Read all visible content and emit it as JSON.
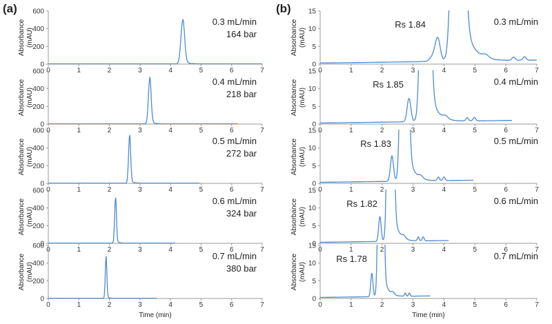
{
  "panel_labels": [
    "(a)",
    "(b)"
  ],
  "chart_data": [
    {
      "panel": "(a)",
      "type": "line",
      "xlabel": "Time (min)",
      "ylabel": "Absorbance (mAU)",
      "xlim": [
        0,
        7
      ],
      "ylim": [
        0,
        600
      ],
      "x_ticks": [
        0,
        1,
        2,
        3,
        4,
        5,
        6,
        7
      ],
      "y_ticks": [
        0,
        200,
        400,
        600
      ],
      "series": [
        {
          "name": "0.3 mL/min",
          "flow": "0.3 mL/min",
          "pressure": "164 bar",
          "peak_time": 4.4,
          "peak_height": 490,
          "peak_width": 0.06,
          "end_time": 7.0
        },
        {
          "name": "0.4 mL/min",
          "flow": "0.4 mL/min",
          "pressure": "218 bar",
          "peak_time": 3.32,
          "peak_height": 505,
          "peak_width": 0.045,
          "end_time": 6.2
        },
        {
          "name": "0.5 mL/min",
          "flow": "0.5 mL/min",
          "pressure": "272 bar",
          "peak_time": 2.66,
          "peak_height": 525,
          "peak_width": 0.035,
          "end_time": 4.95
        },
        {
          "name": "0.6 mL/min",
          "flow": "0.6 mL/min",
          "pressure": "324 bar",
          "peak_time": 2.2,
          "peak_height": 500,
          "peak_width": 0.03,
          "end_time": 4.15
        },
        {
          "name": "0.7 mL/min",
          "flow": "0.7 mL/min",
          "pressure": "380 bar",
          "peak_time": 1.89,
          "peak_height": 455,
          "peak_width": 0.026,
          "end_time": 3.55
        }
      ]
    },
    {
      "panel": "(b)",
      "type": "line",
      "xlabel": "Time (min)",
      "ylabel": "Absorbance (mAU)",
      "xlim": [
        0,
        7
      ],
      "ylim": [
        0,
        15
      ],
      "x_ticks": [
        0,
        1,
        2,
        3,
        4,
        5,
        6,
        7
      ],
      "y_ticks": [
        0,
        5,
        10,
        15
      ],
      "series": [
        {
          "name": "0.3 mL/min",
          "flow": "0.3 mL/min",
          "resolution": "Rs 1.84",
          "end_time": 7.0,
          "peaks": [
            {
              "t": 3.8,
              "h": 6.3,
              "w": 0.08
            },
            {
              "t": 3.65,
              "h": 1.5,
              "w": 0.1
            },
            {
              "t": 4.45,
              "h": 180,
              "w": 0.13
            },
            {
              "t": 5.35,
              "h": 0.9,
              "w": 0.1
            },
            {
              "t": 6.25,
              "h": 0.9,
              "w": 0.05
            },
            {
              "t": 6.6,
              "h": 1.0,
              "w": 0.05
            }
          ],
          "tail": {
            "t0": 4.73,
            "amp": 9,
            "tau": 0.28
          }
        },
        {
          "name": "0.4 mL/min",
          "flow": "0.4 mL/min",
          "resolution": "Rs 1.85",
          "end_time": 6.2,
          "peaks": [
            {
              "t": 2.87,
              "h": 6.6,
              "w": 0.06
            },
            {
              "t": 3.4,
              "h": 180,
              "w": 0.1
            },
            {
              "t": 4.05,
              "h": 0.8,
              "w": 0.08
            },
            {
              "t": 4.75,
              "h": 0.9,
              "w": 0.04
            },
            {
              "t": 4.98,
              "h": 1.0,
              "w": 0.04
            }
          ],
          "tail": {
            "t0": 3.6,
            "amp": 7,
            "tau": 0.22
          }
        },
        {
          "name": "0.5 mL/min",
          "flow": "0.5 mL/min",
          "resolution": "Rs 1.83",
          "end_time": 4.95,
          "peaks": [
            {
              "t": 2.32,
              "h": 7.2,
              "w": 0.05
            },
            {
              "t": 2.72,
              "h": 180,
              "w": 0.08
            },
            {
              "t": 3.25,
              "h": 0.8,
              "w": 0.07
            },
            {
              "t": 3.82,
              "h": 1.0,
              "w": 0.035
            },
            {
              "t": 4.0,
              "h": 1.0,
              "w": 0.035
            }
          ],
          "tail": {
            "t0": 2.88,
            "amp": 7,
            "tau": 0.18
          }
        },
        {
          "name": "0.6 mL/min",
          "flow": "0.6 mL/min",
          "resolution": "Rs 1.82",
          "end_time": 4.15,
          "peaks": [
            {
              "t": 1.93,
              "h": 7.0,
              "w": 0.04
            },
            {
              "t": 2.27,
              "h": 180,
              "w": 0.065
            },
            {
              "t": 2.7,
              "h": 0.8,
              "w": 0.06
            },
            {
              "t": 3.17,
              "h": 1.1,
              "w": 0.03
            },
            {
              "t": 3.33,
              "h": 1.1,
              "w": 0.03
            }
          ],
          "tail": {
            "t0": 2.4,
            "amp": 7,
            "tau": 0.15
          }
        },
        {
          "name": "0.7 mL/min",
          "flow": "0.7 mL/min",
          "resolution": "Rs 1.78",
          "end_time": 3.55,
          "peaks": [
            {
              "t": 1.67,
              "h": 6.6,
              "w": 0.035
            },
            {
              "t": 1.96,
              "h": 180,
              "w": 0.055
            },
            {
              "t": 2.35,
              "h": 0.7,
              "w": 0.05
            },
            {
              "t": 2.75,
              "h": 0.9,
              "w": 0.025
            },
            {
              "t": 2.88,
              "h": 0.9,
              "w": 0.025
            }
          ],
          "tail": {
            "t0": 2.06,
            "amp": 6,
            "tau": 0.13
          }
        }
      ]
    }
  ]
}
